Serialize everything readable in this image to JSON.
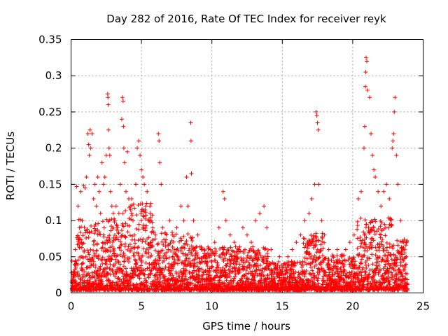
{
  "chart_data": {
    "type": "scatter",
    "title": "Day 282 of 2016, Rate Of TEC Index for receiver reyk",
    "xlabel": "GPS time / hours",
    "ylabel": "ROTI / TECUs",
    "xlim": [
      0,
      25
    ],
    "ylim": [
      0,
      0.35
    ],
    "xticks": [
      "0",
      "5",
      "10",
      "15",
      "20",
      "25"
    ],
    "yticks": [
      "0",
      "0.05",
      "0.1",
      "0.15",
      "0.2",
      "0.25",
      "0.3",
      "0.35"
    ],
    "grid": true,
    "marker": "+",
    "color": "#ff0000",
    "series": [
      {
        "name": "ROTI",
        "points": [
          [
            0.1,
            0.01
          ],
          [
            0.2,
            0.03
          ],
          [
            0.3,
            0.06
          ],
          [
            0.4,
            0.147
          ],
          [
            0.5,
            0.12
          ],
          [
            0.6,
            0.09
          ],
          [
            0.7,
            0.14
          ],
          [
            0.8,
            0.1
          ],
          [
            0.9,
            0.148
          ],
          [
            1.0,
            0.145
          ],
          [
            1.1,
            0.16
          ],
          [
            1.2,
            0.22
          ],
          [
            1.25,
            0.205
          ],
          [
            1.3,
            0.19
          ],
          [
            1.35,
            0.225
          ],
          [
            1.4,
            0.2
          ],
          [
            1.5,
            0.22
          ],
          [
            1.6,
            0.13
          ],
          [
            1.7,
            0.15
          ],
          [
            1.8,
            0.12
          ],
          [
            1.9,
            0.16
          ],
          [
            2.0,
            0.14
          ],
          [
            2.1,
            0.11
          ],
          [
            2.2,
            0.18
          ],
          [
            2.3,
            0.15
          ],
          [
            2.4,
            0.16
          ],
          [
            2.5,
            0.19
          ],
          [
            2.6,
            0.275
          ],
          [
            2.62,
            0.27
          ],
          [
            2.64,
            0.26
          ],
          [
            2.66,
            0.225
          ],
          [
            2.7,
            0.2
          ],
          [
            2.75,
            0.19
          ],
          [
            2.8,
            0.14
          ],
          [
            2.9,
            0.12
          ],
          [
            3.0,
            0.11
          ],
          [
            3.1,
            0.1
          ],
          [
            3.2,
            0.12
          ],
          [
            3.3,
            0.09
          ],
          [
            3.4,
            0.11
          ],
          [
            3.5,
            0.15
          ],
          [
            3.6,
            0.24
          ],
          [
            3.65,
            0.27
          ],
          [
            3.7,
            0.265
          ],
          [
            3.72,
            0.23
          ],
          [
            3.75,
            0.2
          ],
          [
            3.8,
            0.18
          ],
          [
            3.9,
            0.14
          ],
          [
            4.0,
            0.195
          ],
          [
            4.1,
            0.13
          ],
          [
            4.2,
            0.12
          ],
          [
            4.3,
            0.13
          ],
          [
            4.4,
            0.1
          ],
          [
            4.5,
            0.08
          ],
          [
            4.6,
            0.15
          ],
          [
            4.7,
            0.2
          ],
          [
            4.8,
            0.21
          ],
          [
            4.9,
            0.19
          ],
          [
            5.0,
            0.17
          ],
          [
            5.1,
            0.16
          ],
          [
            5.2,
            0.15
          ],
          [
            5.3,
            0.12
          ],
          [
            5.4,
            0.14
          ],
          [
            5.5,
            0.1
          ],
          [
            5.6,
            0.12
          ],
          [
            5.8,
            0.09
          ],
          [
            6.0,
            0.08
          ],
          [
            6.2,
            0.22
          ],
          [
            6.25,
            0.21
          ],
          [
            6.3,
            0.18
          ],
          [
            6.4,
            0.15
          ],
          [
            6.5,
            0.09
          ],
          [
            6.7,
            0.07
          ],
          [
            6.9,
            0.06
          ],
          [
            7.0,
            0.1
          ],
          [
            7.2,
            0.08
          ],
          [
            7.5,
            0.09
          ],
          [
            7.8,
            0.12
          ],
          [
            8.0,
            0.1
          ],
          [
            8.2,
            0.16
          ],
          [
            8.3,
            0.12
          ],
          [
            8.5,
            0.235
          ],
          [
            8.52,
            0.21
          ],
          [
            8.55,
            0.165
          ],
          [
            8.7,
            0.1
          ],
          [
            9.0,
            0.08
          ],
          [
            9.3,
            0.06
          ],
          [
            9.6,
            0.05
          ],
          [
            9.9,
            0.06
          ],
          [
            10.2,
            0.07
          ],
          [
            10.5,
            0.09
          ],
          [
            10.8,
            0.14
          ],
          [
            10.9,
            0.13
          ],
          [
            11.0,
            0.1
          ],
          [
            11.3,
            0.08
          ],
          [
            11.6,
            0.07
          ],
          [
            11.9,
            0.06
          ],
          [
            12.2,
            0.09
          ],
          [
            12.5,
            0.08
          ],
          [
            12.8,
            0.07
          ],
          [
            13.1,
            0.1
          ],
          [
            13.4,
            0.11
          ],
          [
            13.7,
            0.12
          ],
          [
            13.9,
            0.09
          ],
          [
            14.2,
            0.06
          ],
          [
            14.5,
            0.04
          ],
          [
            14.8,
            0.05
          ],
          [
            15.1,
            0.04
          ],
          [
            15.4,
            0.05
          ],
          [
            15.7,
            0.06
          ],
          [
            16.0,
            0.07
          ],
          [
            16.3,
            0.08
          ],
          [
            16.6,
            0.1
          ],
          [
            16.9,
            0.11
          ],
          [
            17.1,
            0.13
          ],
          [
            17.3,
            0.15
          ],
          [
            17.4,
            0.25
          ],
          [
            17.45,
            0.245
          ],
          [
            17.5,
            0.235
          ],
          [
            17.55,
            0.225
          ],
          [
            17.6,
            0.15
          ],
          [
            17.8,
            0.1
          ],
          [
            18.0,
            0.08
          ],
          [
            18.3,
            0.06
          ],
          [
            18.6,
            0.05
          ],
          [
            18.9,
            0.06
          ],
          [
            19.2,
            0.05
          ],
          [
            19.5,
            0.06
          ],
          [
            19.8,
            0.07
          ],
          [
            20.1,
            0.08
          ],
          [
            20.4,
            0.13
          ],
          [
            20.6,
            0.14
          ],
          [
            20.8,
            0.2
          ],
          [
            20.85,
            0.23
          ],
          [
            20.9,
            0.285
          ],
          [
            20.92,
            0.305
          ],
          [
            20.95,
            0.325
          ],
          [
            21.0,
            0.32
          ],
          [
            21.05,
            0.28
          ],
          [
            21.2,
            0.27
          ],
          [
            21.3,
            0.22
          ],
          [
            21.4,
            0.19
          ],
          [
            21.5,
            0.17
          ],
          [
            21.6,
            0.16
          ],
          [
            21.8,
            0.14
          ],
          [
            22.0,
            0.12
          ],
          [
            22.2,
            0.14
          ],
          [
            22.4,
            0.15
          ],
          [
            22.6,
            0.13
          ],
          [
            22.8,
            0.2
          ],
          [
            22.85,
            0.21
          ],
          [
            22.9,
            0.22
          ],
          [
            22.95,
            0.25
          ],
          [
            23.0,
            0.27
          ],
          [
            23.1,
            0.19
          ],
          [
            23.2,
            0.15
          ],
          [
            23.4,
            0.1
          ],
          [
            23.6,
            0.07
          ],
          [
            23.8,
            0.05
          ]
        ]
      }
    ]
  }
}
